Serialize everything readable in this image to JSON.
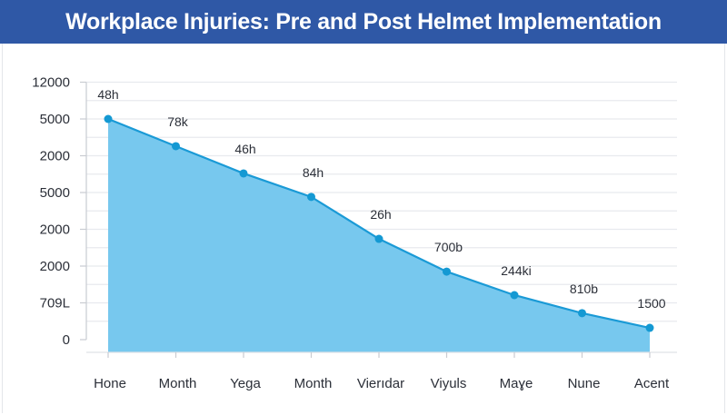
{
  "chart_data": {
    "type": "area",
    "title": "Workplace Injuries: Pre and Post Helmet Implementation",
    "xlabel": "",
    "ylabel": "",
    "categories": [
      "Hone",
      "Month",
      "Yega",
      "Month",
      "Vierıdar",
      "Viyuls",
      "Maɣe",
      "Nune",
      "Acent"
    ],
    "y_tick_labels": [
      "0",
      "709L",
      "2000",
      "2000",
      "5000",
      "2000",
      "5000",
      "12000"
    ],
    "ylim": [
      0,
      7
    ],
    "values": [
      6.0,
      5.26,
      4.52,
      3.88,
      2.74,
      1.85,
      1.21,
      0.72,
      0.32
    ],
    "data_labels": [
      "48h",
      "78k",
      "46h",
      "84h",
      "26h",
      "700b",
      "244ki",
      "810b",
      "1500"
    ],
    "grid": true,
    "colors": {
      "header": "#2f58a6",
      "fill": "#77c8ee",
      "line": "#1a9ad6",
      "point": "#1499d3"
    }
  }
}
